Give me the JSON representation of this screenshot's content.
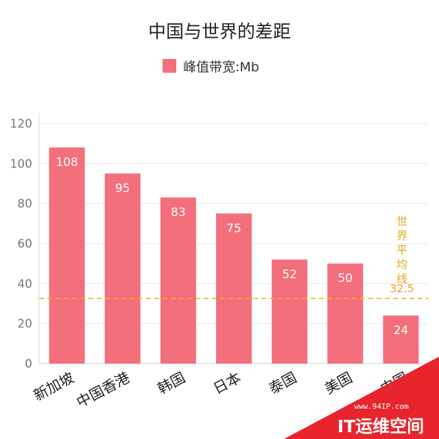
{
  "chart_data": {
    "type": "bar",
    "title": "中国与世界的差距",
    "categories": [
      "新加坡",
      "中国香港",
      "韩国",
      "日本",
      "泰国",
      "美国",
      "中国"
    ],
    "series": [
      {
        "name": "峰值带宽:Mb",
        "values": [
          108,
          95,
          83,
          75,
          52,
          50,
          24
        ],
        "color": "#f36f7c"
      }
    ],
    "ylim": [
      0,
      120
    ],
    "yticks": [
      0,
      20,
      40,
      60,
      80,
      100,
      120
    ],
    "grid": true,
    "legend_position": "top-center",
    "reference_line": {
      "value": 32.5,
      "label": "世界平均线",
      "value_label": "32.5",
      "color": "#f0b429",
      "style": "dashed"
    }
  },
  "watermark": {
    "site": "www.94IP.com",
    "name": "IT运维空间",
    "color": "#e8242c"
  }
}
